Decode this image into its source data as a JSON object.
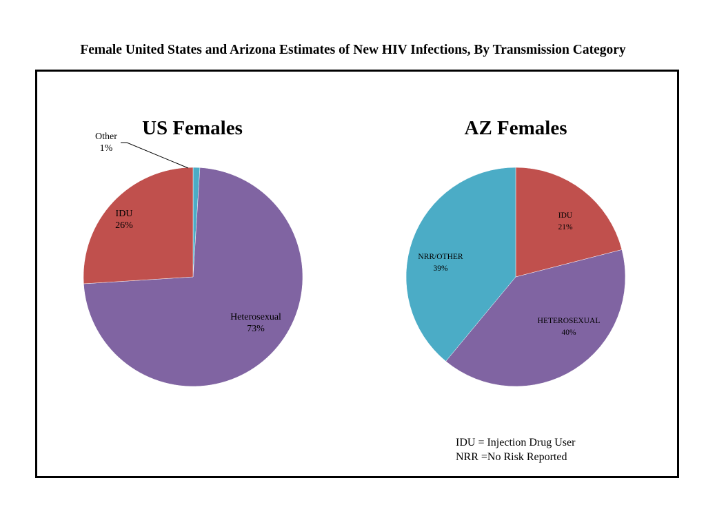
{
  "page": {
    "title": "Female United States and Arizona Estimates of New HIV Infections, By Transmission Category"
  },
  "notes": [
    "IDU = Injection Drug User",
    "NRR =No Risk Reported"
  ],
  "colors": {
    "red": "#c0504d",
    "purple": "#8064a2",
    "blue": "#4bacc6"
  },
  "chart_data": [
    {
      "type": "pie",
      "title": "US Females",
      "slices": [
        {
          "label": "Other",
          "value": 1,
          "display": "1%",
          "color": "#4bacc6"
        },
        {
          "label": "Heterosexual",
          "value": 73,
          "display": "73%",
          "color": "#8064a2"
        },
        {
          "label": "IDU",
          "value": 26,
          "display": "26%",
          "color": "#c0504d"
        }
      ]
    },
    {
      "type": "pie",
      "title": "AZ Females",
      "slices": [
        {
          "label": "IDU",
          "value": 21,
          "display": "21%",
          "color": "#c0504d"
        },
        {
          "label": "HETEROSEXUAL",
          "value": 40,
          "display": "40%",
          "color": "#8064a2"
        },
        {
          "label": "NRR/OTHER",
          "value": 39,
          "display": "39%",
          "color": "#4bacc6"
        }
      ]
    }
  ]
}
